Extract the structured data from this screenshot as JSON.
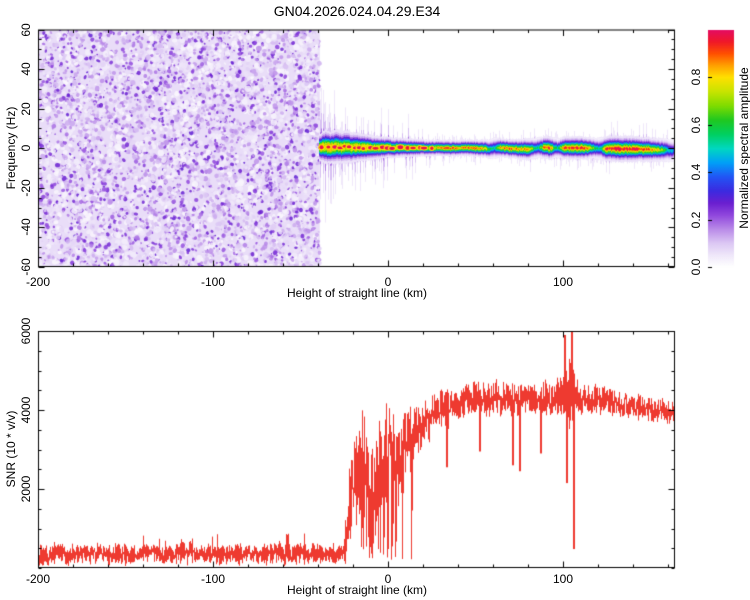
{
  "title": "GN04.2026.024.04.29.E34",
  "colors": {
    "snr_line": "#ee3a30",
    "frame": "#000000",
    "background": "#ffffff",
    "noise_background": "#e9ddf8"
  },
  "colormap_stops": [
    [
      0.0,
      "#ffffff"
    ],
    [
      0.05,
      "#efe7fa"
    ],
    [
      0.1,
      "#dcc8f4"
    ],
    [
      0.16,
      "#b98ae8"
    ],
    [
      0.22,
      "#8f46dd"
    ],
    [
      0.27,
      "#6a1fd0"
    ],
    [
      0.32,
      "#3c2ae0"
    ],
    [
      0.38,
      "#2255f5"
    ],
    [
      0.44,
      "#00a0f8"
    ],
    [
      0.5,
      "#00d8c0"
    ],
    [
      0.56,
      "#00d060"
    ],
    [
      0.62,
      "#20c820"
    ],
    [
      0.68,
      "#7fdc00"
    ],
    [
      0.74,
      "#c8e400"
    ],
    [
      0.8,
      "#ffe000"
    ],
    [
      0.85,
      "#ffa000"
    ],
    [
      0.9,
      "#ff5000"
    ],
    [
      0.95,
      "#f01828"
    ],
    [
      1.0,
      "#e40c63"
    ]
  ],
  "chart_data": [
    {
      "type": "heatmap",
      "title": "GN04.2026.024.04.29.E34",
      "xlabel": "Height of straight line (km)",
      "ylabel": "Frequency (Hz)",
      "xlim": [
        -200,
        164
      ],
      "ylim": [
        -60,
        60
      ],
      "xtick_labels": [
        "-200",
        "-100",
        "0",
        "100"
      ],
      "xtick_values": [
        -200,
        -100,
        0,
        100
      ],
      "ytick_labels": [
        "60",
        "40",
        "20",
        "0",
        "-20",
        "-40",
        "-60"
      ],
      "ytick_values": [
        60,
        40,
        20,
        0,
        -20,
        -40,
        -60
      ],
      "x_minor_step": 20,
      "y_minor_step": 5,
      "colorbar": {
        "label": "Normalized spectral amplitude",
        "tick_labels": [
          "0.0",
          "0.2",
          "0.4",
          "0.6",
          "0.8"
        ],
        "tick_values": [
          0.0,
          0.2,
          0.4,
          0.6,
          0.8
        ],
        "range": [
          0,
          1
        ]
      },
      "regions": {
        "noise": {
          "x_range_km": [
            -200,
            -39
          ],
          "description": "uniform random purple speckle over full frequency range",
          "amplitude_range": [
            0.0,
            0.28
          ]
        },
        "signal_band": {
          "x_range_km": [
            -39,
            164
          ],
          "center_frequency_hz": 0,
          "anchor_columns": [
            "km",
            "center_hz",
            "peak_amplitude",
            "half_width_hz"
          ],
          "anchors": [
            [
              -39,
              0.4,
              1.0,
              3.6
            ],
            [
              -36,
              0.8,
              0.97,
              4.6
            ],
            [
              -33,
              0.2,
              1.0,
              4.2
            ],
            [
              -30,
              0.9,
              0.92,
              4.6
            ],
            [
              -27,
              0.4,
              1.0,
              4.2
            ],
            [
              -24,
              0.8,
              0.95,
              4.4
            ],
            [
              -21,
              0.3,
              0.92,
              4.0
            ],
            [
              -18,
              0.6,
              1.0,
              3.8
            ],
            [
              -15,
              0.2,
              0.95,
              3.6
            ],
            [
              -12,
              0.5,
              1.0,
              3.4
            ],
            [
              -9,
              0.1,
              0.92,
              3.2
            ],
            [
              -6,
              0.4,
              0.96,
              3.0
            ],
            [
              -3,
              0.2,
              1.0,
              2.8
            ],
            [
              0,
              0.4,
              0.95,
              2.7
            ],
            [
              3,
              0.1,
              0.9,
              2.6
            ],
            [
              6,
              0.3,
              0.95,
              2.5
            ],
            [
              10,
              0.2,
              0.87,
              2.4
            ],
            [
              15,
              0.3,
              0.92,
              2.3
            ],
            [
              20,
              0.2,
              0.82,
              2.2
            ],
            [
              25,
              0.1,
              0.9,
              2.1
            ],
            [
              30,
              0.2,
              0.87,
              2.1
            ],
            [
              35,
              0,
              0.92,
              2.1
            ],
            [
              40,
              0.1,
              0.87,
              2.1
            ],
            [
              45,
              0.2,
              0.92,
              2.1
            ],
            [
              50,
              0,
              0.9,
              2.2
            ],
            [
              55,
              -0.2,
              0.82,
              2.3
            ],
            [
              58,
              -0.4,
              0.62,
              2.5
            ],
            [
              61,
              0.2,
              0.52,
              2.7
            ],
            [
              64,
              0.3,
              0.85,
              2.5
            ],
            [
              68,
              0,
              0.92,
              2.4
            ],
            [
              72,
              -0.3,
              0.88,
              2.5
            ],
            [
              76,
              -0.55,
              0.82,
              2.7
            ],
            [
              80,
              -0.4,
              0.88,
              2.8
            ],
            [
              83,
              -0.1,
              0.62,
              2.6
            ],
            [
              86,
              0.2,
              0.55,
              2.7
            ],
            [
              89,
              0.4,
              0.9,
              2.9
            ],
            [
              92,
              0.2,
              0.95,
              3.0
            ],
            [
              95,
              0,
              0.62,
              2.7
            ],
            [
              97,
              0.1,
              0.55,
              2.5
            ],
            [
              100,
              0.2,
              0.9,
              2.9
            ],
            [
              105,
              0.1,
              0.95,
              3.0
            ],
            [
              110,
              0.15,
              0.95,
              3.0
            ],
            [
              115,
              0.05,
              0.85,
              2.8
            ],
            [
              118,
              0,
              0.6,
              2.7
            ],
            [
              121,
              -0.1,
              0.52,
              2.8
            ],
            [
              124,
              -0.2,
              0.9,
              3.2
            ],
            [
              128,
              -0.25,
              1.0,
              3.4
            ],
            [
              133,
              -0.3,
              1.0,
              3.4
            ],
            [
              138,
              -0.4,
              0.95,
              3.4
            ],
            [
              143,
              -0.5,
              0.95,
              3.2
            ],
            [
              148,
              -0.6,
              0.9,
              3.2
            ],
            [
              152,
              -0.7,
              0.85,
              3.0
            ],
            [
              156,
              -0.9,
              0.72,
              3.0
            ],
            [
              159,
              -1.0,
              0.56,
              3.0
            ],
            [
              162,
              -1.2,
              0.46,
              2.8
            ],
            [
              164,
              -1.3,
              0.4,
              2.7
            ]
          ]
        }
      }
    },
    {
      "type": "line",
      "xlabel": "Height of straight line (km)",
      "ylabel": "SNR (10 * v/v)",
      "xlim": [
        -200,
        164
      ],
      "ylim": [
        0,
        6000
      ],
      "xtick_labels": [
        "-200",
        "-100",
        "0",
        "100"
      ],
      "xtick_values": [
        -200,
        -100,
        0,
        100
      ],
      "ytick_labels": [
        "2000",
        "4000",
        "6000"
      ],
      "ytick_values": [
        2000,
        4000,
        6000
      ],
      "x_minor_step": 20,
      "y_minor_step": 500,
      "series": [
        {
          "name": "SNR",
          "color": "#ee3a30",
          "envelope_columns": [
            "km",
            "mean",
            "half_amplitude"
          ],
          "envelope_anchors": [
            [
              -200,
              350,
              260
            ],
            [
              -150,
              350,
              260
            ],
            [
              -100,
              350,
              260
            ],
            [
              -60,
              350,
              260
            ],
            [
              -35,
              355,
              260
            ],
            [
              -26,
              380,
              300
            ],
            [
              -23.5,
              900,
              700
            ],
            [
              -22,
              1800,
              1100
            ],
            [
              -19,
              2000,
              1300
            ],
            [
              -16,
              2200,
              1500
            ],
            [
              -13,
              2400,
              1600
            ],
            [
              -10,
              2200,
              1500
            ],
            [
              -7,
              2350,
              1450
            ],
            [
              -4,
              2550,
              1350
            ],
            [
              -1,
              2700,
              1400
            ],
            [
              2,
              2550,
              1350
            ],
            [
              5,
              2800,
              1250
            ],
            [
              8,
              3050,
              1100
            ],
            [
              11,
              3250,
              950
            ],
            [
              14,
              3450,
              850
            ],
            [
              18,
              3600,
              700
            ],
            [
              22,
              3750,
              620
            ],
            [
              26,
              3900,
              560
            ],
            [
              30,
              4000,
              520
            ],
            [
              35,
              4100,
              480
            ],
            [
              40,
              4200,
              460
            ],
            [
              45,
              4250,
              440
            ],
            [
              50,
              4300,
              440
            ],
            [
              55,
              4250,
              430
            ],
            [
              60,
              4300,
              430
            ],
            [
              65,
              4250,
              440
            ],
            [
              70,
              4300,
              440
            ],
            [
              75,
              4250,
              430
            ],
            [
              80,
              4300,
              410
            ],
            [
              85,
              4280,
              430
            ],
            [
              90,
              4300,
              450
            ],
            [
              95,
              4280,
              440
            ],
            [
              100,
              4350,
              520
            ],
            [
              102,
              4500,
              800
            ],
            [
              104,
              4400,
              1100
            ],
            [
              106,
              4250,
              650
            ],
            [
              109,
              4300,
              420
            ],
            [
              113,
              4280,
              390
            ],
            [
              118,
              4260,
              370
            ],
            [
              124,
              4220,
              350
            ],
            [
              130,
              4180,
              340
            ],
            [
              137,
              4120,
              330
            ],
            [
              144,
              4080,
              320
            ],
            [
              151,
              4020,
              310
            ],
            [
              158,
              3960,
              300
            ],
            [
              164,
              3920,
              300
            ]
          ],
          "events": [
            {
              "x": 100.4,
              "type": "spike",
              "value": 5900
            },
            {
              "x": 104.7,
              "type": "spike",
              "value": 6150
            },
            {
              "x": 105.9,
              "type": "dip",
              "value": 480
            },
            {
              "x": 101.8,
              "type": "dip",
              "value": 2150
            },
            {
              "x": 33,
              "type": "dip",
              "value": 2550
            },
            {
              "x": 52,
              "type": "dip",
              "value": 2950
            },
            {
              "x": 71,
              "type": "dip",
              "value": 2600
            },
            {
              "x": 75,
              "type": "dip",
              "value": 2450
            },
            {
              "x": 87,
              "type": "dip",
              "value": 2900
            }
          ],
          "deep_fade_zone": {
            "x_range": [
              -23,
              14
            ],
            "probability": 0.07,
            "floor": 400
          }
        }
      ]
    }
  ]
}
